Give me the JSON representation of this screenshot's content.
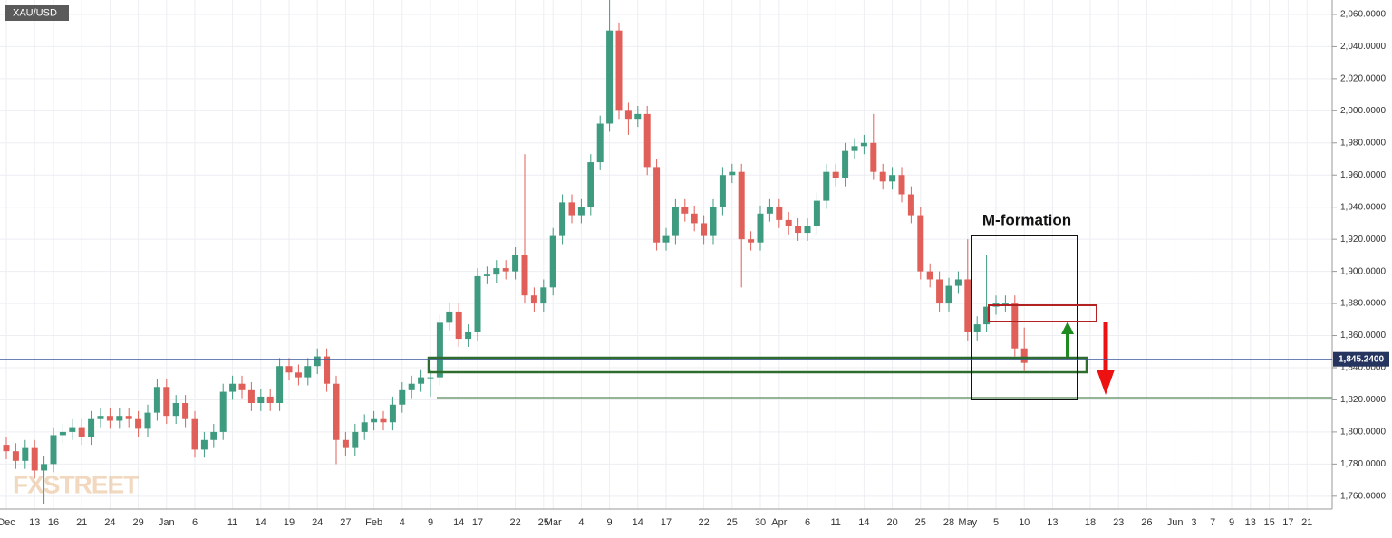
{
  "chart_data": {
    "type": "candlestick",
    "symbol": "XAU/USD",
    "annotation": "M-formation",
    "watermark": "FXSTREET",
    "last_price": {
      "value": 1845.24,
      "label": "1,845.2400"
    },
    "up_color": "#3f9b80",
    "down_color": "#e05f58",
    "grid": true,
    "ylim": [
      1752,
      2069
    ],
    "yticks": [
      {
        "value": 1760,
        "label": "1,760.0000"
      },
      {
        "value": 1780,
        "label": "1,780.0000"
      },
      {
        "value": 1800,
        "label": "1,800.0000"
      },
      {
        "value": 1820,
        "label": "1,820.0000"
      },
      {
        "value": 1840,
        "label": "1,840.0000"
      },
      {
        "value": 1860,
        "label": "1,860.0000"
      },
      {
        "value": 1880,
        "label": "1,880.0000"
      },
      {
        "value": 1900,
        "label": "1,900.0000"
      },
      {
        "value": 1920,
        "label": "1,920.0000"
      },
      {
        "value": 1940,
        "label": "1,940.0000"
      },
      {
        "value": 1960,
        "label": "1,960.0000"
      },
      {
        "value": 1980,
        "label": "1,980.0000"
      },
      {
        "value": 2000,
        "label": "2,000.0000"
      },
      {
        "value": 2020,
        "label": "2,020.0000"
      },
      {
        "value": 2040,
        "label": "2,040.0000"
      },
      {
        "value": 2060,
        "label": "2,060.0000"
      }
    ],
    "categories": [
      "Dec",
      null,
      null,
      "13",
      null,
      "16",
      null,
      null,
      "21",
      null,
      null,
      "24",
      null,
      null,
      "29",
      null,
      null,
      "Jan",
      null,
      null,
      "6",
      null,
      null,
      null,
      "11",
      null,
      null,
      "14",
      null,
      null,
      "19",
      null,
      null,
      "24",
      null,
      null,
      "27",
      null,
      null,
      "Feb",
      null,
      null,
      "4",
      null,
      null,
      "9",
      null,
      null,
      "14",
      null,
      "17",
      null,
      null,
      null,
      "22",
      null,
      null,
      "25",
      "Mar",
      null,
      null,
      "4",
      null,
      null,
      "9",
      null,
      null,
      "14",
      null,
      null,
      "17",
      null,
      null,
      null,
      "22",
      null,
      null,
      "25",
      null,
      null,
      "30",
      null,
      "Apr",
      null,
      null,
      "6",
      null,
      null,
      "11",
      null,
      null,
      "14",
      null,
      null,
      "20",
      null,
      null,
      "25",
      null,
      null,
      "28",
      null,
      "May",
      null,
      null,
      "5",
      null,
      null,
      "10",
      null,
      null,
      "13",
      null,
      null,
      null,
      "18",
      null,
      null,
      "23",
      null,
      null,
      "26",
      null,
      null,
      "Jun",
      null,
      "3",
      null,
      "7",
      null,
      "9",
      null,
      "13",
      null,
      "15",
      null,
      "17",
      null,
      "21",
      null
    ],
    "open": [
      1792,
      1788,
      1782,
      1790,
      1776,
      1780,
      1798,
      1800,
      1803,
      1797,
      1808,
      1810,
      1807,
      1810,
      1808,
      1802,
      1812,
      1828,
      1810,
      1818,
      1808,
      1789,
      1795,
      1800,
      1825,
      1830,
      1826,
      1818,
      1822,
      1818,
      1841,
      1837,
      1834,
      1841,
      1847,
      1830,
      1795,
      1790,
      1800,
      1806,
      1808,
      1806,
      1817,
      1826,
      1830,
      1834,
      1834,
      1868,
      1875,
      1858,
      1862,
      1897,
      1898,
      1902,
      1900,
      1910,
      1885,
      1880,
      1890,
      1922,
      1943,
      1935,
      1940,
      1968,
      1992,
      2050,
      2000,
      1995,
      1998,
      1965,
      1918,
      1922,
      1940,
      1936,
      1930,
      1922,
      1940,
      1960,
      1962,
      1920,
      1918,
      1936,
      1940,
      1932,
      1928,
      1924,
      1928,
      1944,
      1962,
      1958,
      1975,
      1978,
      1980,
      1962,
      1956,
      1960,
      1948,
      1935,
      1900,
      1895,
      1880,
      1891,
      1895,
      1862,
      1867,
      1878,
      1880,
      1880,
      1852,
      null,
      null,
      null,
      null,
      null,
      null,
      null,
      null,
      null,
      null,
      null,
      null,
      null,
      null,
      null,
      null,
      null,
      null,
      null,
      null,
      null,
      null,
      null,
      null,
      null,
      null,
      null,
      null,
      null,
      null,
      null
    ],
    "high": [
      1797,
      1793,
      1795,
      1795,
      1785,
      1803,
      1805,
      1808,
      1808,
      1813,
      1815,
      1815,
      1815,
      1815,
      1813,
      1817,
      1833,
      1833,
      1823,
      1823,
      1813,
      1800,
      1805,
      1830,
      1835,
      1835,
      1831,
      1827,
      1827,
      1846,
      1846,
      1842,
      1846,
      1852,
      1852,
      1835,
      1800,
      1805,
      1811,
      1813,
      1813,
      1822,
      1831,
      1835,
      1839,
      1839,
      1873,
      1880,
      1880,
      1867,
      1902,
      1903,
      1907,
      1907,
      1915,
      1973,
      1890,
      1895,
      1927,
      1948,
      1948,
      1945,
      1973,
      1997,
      2070,
      2055,
      2005,
      2003,
      2003,
      1970,
      1927,
      1945,
      1945,
      1941,
      1935,
      1945,
      1965,
      1967,
      1967,
      1925,
      1941,
      1945,
      1945,
      1937,
      1933,
      1933,
      1949,
      1967,
      1967,
      1980,
      1983,
      1985,
      1998,
      1967,
      1965,
      1965,
      1953,
      1940,
      1905,
      1900,
      1896,
      1900,
      1920,
      1872,
      1910,
      1885,
      1885,
      1885,
      1865,
      null,
      null,
      null,
      null,
      null,
      null,
      null,
      null,
      null,
      null,
      null,
      null,
      null,
      null,
      null,
      null,
      null,
      null,
      null,
      null,
      null,
      null,
      null,
      null,
      null,
      null,
      null,
      null,
      null,
      null,
      null
    ],
    "low": [
      1783,
      1777,
      1777,
      1771,
      1755,
      1775,
      1793,
      1795,
      1792,
      1792,
      1803,
      1802,
      1802,
      1803,
      1797,
      1797,
      1807,
      1805,
      1805,
      1803,
      1784,
      1784,
      1790,
      1795,
      1820,
      1821,
      1813,
      1813,
      1813,
      1813,
      1832,
      1829,
      1829,
      1836,
      1825,
      1780,
      1785,
      1785,
      1795,
      1801,
      1801,
      1801,
      1812,
      1821,
      1825,
      1822,
      1829,
      1863,
      1853,
      1853,
      1857,
      1892,
      1893,
      1895,
      1895,
      1880,
      1875,
      1875,
      1885,
      1917,
      1930,
      1930,
      1935,
      1963,
      1987,
      1995,
      1985,
      1990,
      1960,
      1913,
      1913,
      1917,
      1931,
      1925,
      1917,
      1917,
      1935,
      1955,
      1890,
      1913,
      1913,
      1931,
      1927,
      1923,
      1919,
      1919,
      1923,
      1939,
      1953,
      1953,
      1970,
      1973,
      1957,
      1951,
      1951,
      1943,
      1930,
      1895,
      1890,
      1875,
      1875,
      1886,
      1857,
      1857,
      1862,
      1873,
      1875,
      1847,
      1838,
      null,
      null,
      null,
      null,
      null,
      null,
      null,
      null,
      null,
      null,
      null,
      null,
      null,
      null,
      null,
      null,
      null,
      null,
      null,
      null,
      null,
      null,
      null,
      null,
      null,
      null,
      null,
      null,
      null,
      null,
      null
    ],
    "close": [
      1788,
      1782,
      1790,
      1776,
      1780,
      1798,
      1800,
      1803,
      1797,
      1808,
      1810,
      1807,
      1810,
      1808,
      1802,
      1812,
      1828,
      1810,
      1818,
      1808,
      1789,
      1795,
      1800,
      1825,
      1830,
      1826,
      1818,
      1822,
      1818,
      1841,
      1837,
      1834,
      1841,
      1847,
      1830,
      1795,
      1790,
      1800,
      1806,
      1808,
      1806,
      1817,
      1826,
      1830,
      1834,
      1834,
      1868,
      1875,
      1858,
      1862,
      1897,
      1898,
      1902,
      1900,
      1910,
      1885,
      1880,
      1890,
      1922,
      1943,
      1935,
      1940,
      1968,
      1992,
      2050,
      2000,
      1995,
      1998,
      1965,
      1918,
      1922,
      1940,
      1936,
      1930,
      1922,
      1940,
      1960,
      1962,
      1920,
      1918,
      1936,
      1940,
      1932,
      1928,
      1924,
      1928,
      1944,
      1962,
      1958,
      1975,
      1978,
      1980,
      1962,
      1956,
      1960,
      1948,
      1935,
      1900,
      1895,
      1880,
      1891,
      1895,
      1862,
      1867,
      1878,
      1880,
      1880,
      1852,
      1843,
      null,
      null,
      null,
      null,
      null,
      null,
      null,
      null,
      null,
      null,
      null,
      null,
      null,
      null,
      null,
      null,
      null,
      null,
      null,
      null,
      null,
      null,
      null,
      null,
      null,
      null,
      null,
      null,
      null,
      null,
      null
    ]
  }
}
